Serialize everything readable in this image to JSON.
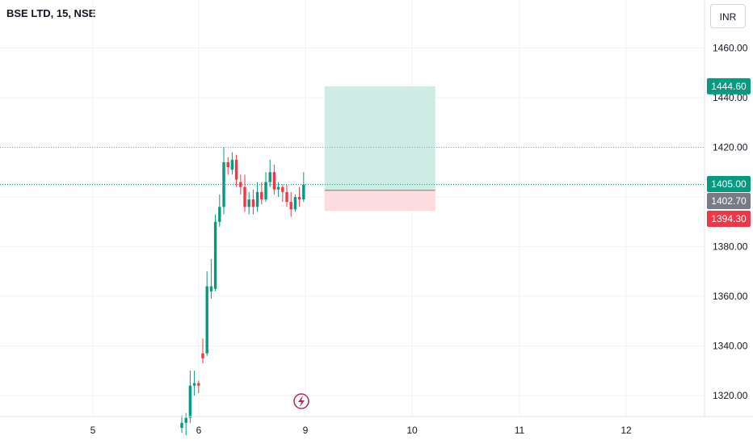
{
  "header": {
    "title": "BSE LTD, 15, NSE",
    "currency": "INR"
  },
  "colors": {
    "up": "#089981",
    "down": "#f23645",
    "grid": "#f0f3fa",
    "target_zone": "#cfece4",
    "stop_zone": "#fcdcdf",
    "price_badge_gray": "#787b86",
    "lightning": "#b2245c"
  },
  "chart_data": {
    "type": "candlestick",
    "y_ticks": [
      "1320.00",
      "1340.00",
      "1360.00",
      "1380.00",
      "1400.00",
      "1420.00",
      "1440.00",
      "1460.00"
    ],
    "x_ticks": [
      "5",
      "6",
      "9",
      "10",
      "11",
      "12"
    ],
    "ylim": [
      1310,
      1475
    ],
    "price_lines": {
      "high_ref": 1420,
      "current": 1405
    },
    "position": {
      "target": 1444.6,
      "entry": 1402.7,
      "stop": 1394.3,
      "start_index": 34,
      "end_index": 54
    },
    "badges": [
      {
        "label": "1444.60",
        "value": 1444.6,
        "color": "#089981"
      },
      {
        "label": "1405.00",
        "value": 1405.0,
        "color": "#089981"
      },
      {
        "label": "1402.70",
        "value": 1402.7,
        "color": "#787b86"
      },
      {
        "label": "1394.30",
        "value": 1394.3,
        "color": "#f23645"
      }
    ],
    "candles": [
      {
        "o": 1307,
        "h": 1312,
        "l": 1305,
        "c": 1309
      },
      {
        "o": 1309,
        "h": 1313,
        "l": 1304,
        "c": 1311
      },
      {
        "o": 1311,
        "h": 1330,
        "l": 1309,
        "c": 1324
      },
      {
        "o": 1324,
        "h": 1330,
        "l": 1320,
        "c": 1325
      },
      {
        "o": 1325,
        "h": 1326,
        "l": 1321,
        "c": 1324
      },
      {
        "o": 1337,
        "h": 1343,
        "l": 1333,
        "c": 1335
      },
      {
        "o": 1337,
        "h": 1370,
        "l": 1336,
        "c": 1364
      },
      {
        "o": 1362,
        "h": 1375,
        "l": 1359,
        "c": 1364
      },
      {
        "o": 1363,
        "h": 1393,
        "l": 1362,
        "c": 1390
      },
      {
        "o": 1390,
        "h": 1401,
        "l": 1388,
        "c": 1396
      },
      {
        "o": 1396,
        "h": 1420,
        "l": 1393,
        "c": 1414
      },
      {
        "o": 1414,
        "h": 1416,
        "l": 1409,
        "c": 1412
      },
      {
        "o": 1411,
        "h": 1418,
        "l": 1409,
        "c": 1415
      },
      {
        "o": 1415,
        "h": 1417,
        "l": 1404,
        "c": 1407
      },
      {
        "o": 1406,
        "h": 1409,
        "l": 1401,
        "c": 1404
      },
      {
        "o": 1404,
        "h": 1409,
        "l": 1394,
        "c": 1396
      },
      {
        "o": 1396,
        "h": 1402,
        "l": 1393,
        "c": 1399
      },
      {
        "o": 1399,
        "h": 1403,
        "l": 1393,
        "c": 1396
      },
      {
        "o": 1396,
        "h": 1406,
        "l": 1394,
        "c": 1402
      },
      {
        "o": 1402,
        "h": 1406,
        "l": 1397,
        "c": 1399
      },
      {
        "o": 1399,
        "h": 1410,
        "l": 1398,
        "c": 1406
      },
      {
        "o": 1406,
        "h": 1415,
        "l": 1404,
        "c": 1410
      },
      {
        "o": 1410,
        "h": 1413,
        "l": 1401,
        "c": 1403
      },
      {
        "o": 1403,
        "h": 1406,
        "l": 1400,
        "c": 1404
      },
      {
        "o": 1404,
        "h": 1405,
        "l": 1398,
        "c": 1402
      },
      {
        "o": 1402,
        "h": 1405,
        "l": 1396,
        "c": 1398
      },
      {
        "o": 1398,
        "h": 1402,
        "l": 1392,
        "c": 1395
      },
      {
        "o": 1395,
        "h": 1401,
        "l": 1394,
        "c": 1400
      },
      {
        "o": 1400,
        "h": 1404,
        "l": 1396,
        "c": 1399
      },
      {
        "o": 1399,
        "h": 1410,
        "l": 1398,
        "c": 1405
      }
    ]
  }
}
